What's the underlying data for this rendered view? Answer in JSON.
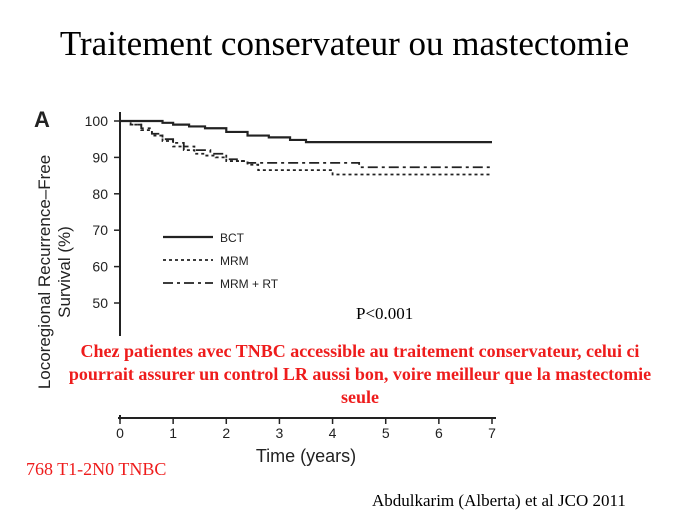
{
  "slide": {
    "title": "Traitement conservateur ou mastectomie",
    "callout": "Chez patientes avec TNBC accessible au traitement conservateur, celui ci pourrait assurer un control LR aussi bon, voire meilleur que la mastectomie seule",
    "cohort_note": "768 T1-2N0 TNBC",
    "citation": "Abdulkarim (Alberta) et al JCO 2011"
  },
  "chart_data": {
    "type": "line",
    "panel_label": "A",
    "title": "",
    "xlabel": "Time (years)",
    "ylabel": "Locoregional Recurrence–Free Survival (%)",
    "ylabel_line1": "Locoregional Recurrence–Free",
    "ylabel_line2": "Survival (%)",
    "xlim": [
      0,
      7
    ],
    "ylim": [
      40,
      100
    ],
    "x_ticks": [
      0,
      1,
      2,
      3,
      4,
      5,
      6,
      7
    ],
    "y_ticks": [
      100,
      90,
      80,
      70,
      60,
      50
    ],
    "annotation": "P<0.001",
    "legend_position": "lower-left inside plot",
    "series": [
      {
        "name": "BCT",
        "style": "solid",
        "points": [
          [
            0,
            100
          ],
          [
            0.5,
            100
          ],
          [
            0.8,
            99.5
          ],
          [
            1.0,
            99
          ],
          [
            1.3,
            98.5
          ],
          [
            1.6,
            98
          ],
          [
            2.0,
            97
          ],
          [
            2.4,
            96
          ],
          [
            2.8,
            95.5
          ],
          [
            3.2,
            94.8
          ],
          [
            3.5,
            94.2
          ],
          [
            4.0,
            94.2
          ],
          [
            5.0,
            94.2
          ],
          [
            6.0,
            94.2
          ],
          [
            7.0,
            94.2
          ]
        ]
      },
      {
        "name": "MRM",
        "style": "dotted",
        "points": [
          [
            0,
            100
          ],
          [
            0.2,
            99
          ],
          [
            0.4,
            97.5
          ],
          [
            0.6,
            96
          ],
          [
            0.8,
            94.5
          ],
          [
            1.0,
            93
          ],
          [
            1.2,
            92
          ],
          [
            1.4,
            91
          ],
          [
            1.6,
            90.5
          ],
          [
            1.8,
            90
          ],
          [
            2.0,
            89
          ],
          [
            2.4,
            88
          ],
          [
            2.6,
            86.5
          ],
          [
            3.0,
            86.5
          ],
          [
            3.5,
            86.5
          ],
          [
            4.0,
            85.3
          ],
          [
            5.0,
            85.3
          ],
          [
            6.0,
            85.3
          ],
          [
            7.0,
            85.3
          ]
        ]
      },
      {
        "name": "MRM + RT",
        "style": "dashdot",
        "points": [
          [
            0,
            100
          ],
          [
            0.2,
            99
          ],
          [
            0.4,
            98
          ],
          [
            0.6,
            96.5
          ],
          [
            0.8,
            95
          ],
          [
            1.0,
            94
          ],
          [
            1.2,
            93
          ],
          [
            1.4,
            92
          ],
          [
            1.7,
            91
          ],
          [
            2.0,
            89.5
          ],
          [
            2.2,
            89
          ],
          [
            2.4,
            88.5
          ],
          [
            3.0,
            88.5
          ],
          [
            4.0,
            88.5
          ],
          [
            4.5,
            87.3
          ],
          [
            5.0,
            87.3
          ],
          [
            6.0,
            87.3
          ],
          [
            7.0,
            87.3
          ]
        ]
      }
    ]
  }
}
